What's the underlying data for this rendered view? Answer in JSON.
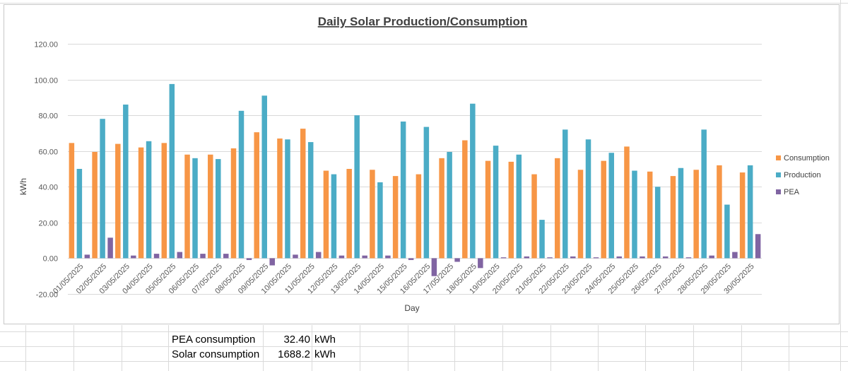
{
  "chart_data": {
    "type": "bar",
    "title": "Daily Solar Production/Consumption",
    "xlabel": "Day",
    "ylabel": "kWh",
    "ylim": [
      -20,
      120
    ],
    "yticks": [
      "-20.00",
      "0.00",
      "20.00",
      "40.00",
      "60.00",
      "80.00",
      "100.00",
      "120.00"
    ],
    "grid": true,
    "legend_position": "right",
    "categories": [
      "01/05/2025",
      "02/05/2025",
      "03/05/2025",
      "04/05/2025",
      "05/05/2025",
      "06/05/2025",
      "07/05/2025",
      "08/05/2025",
      "09/05/2025",
      "10/05/2025",
      "11/05/2025",
      "12/05/2025",
      "13/05/2025",
      "14/05/2025",
      "15/05/2025",
      "16/05/2025",
      "17/05/2025",
      "18/05/2025",
      "19/05/2025",
      "20/05/2025",
      "21/05/2025",
      "22/05/2025",
      "23/05/2025",
      "24/05/2025",
      "25/05/2025",
      "26/05/2025",
      "27/05/2025",
      "28/05/2025",
      "29/05/2025",
      "30/05/2025"
    ],
    "series": [
      {
        "name": "Consumption",
        "color": "#F79646",
        "values": [
          64.5,
          59.5,
          64,
          62,
          64.5,
          58,
          58,
          61.5,
          70.5,
          67,
          72.5,
          49,
          50,
          49.5,
          46,
          47,
          56,
          66,
          54.5,
          54,
          47,
          56,
          49.5,
          54.5,
          62.5,
          48.5,
          46,
          49.5,
          52,
          48
        ]
      },
      {
        "name": "Production",
        "color": "#4BACC6",
        "values": [
          50,
          78,
          86,
          65.5,
          97.5,
          56,
          55.5,
          82.5,
          91,
          66.5,
          65,
          47,
          80,
          42.5,
          76.5,
          73.5,
          59.5,
          86.5,
          63,
          58,
          21.5,
          72,
          66.5,
          59,
          49,
          40,
          50.5,
          72,
          30,
          52
        ]
      },
      {
        "name": "PEA",
        "color": "#8064A2",
        "values": [
          2,
          11.5,
          1.5,
          2.5,
          3.5,
          2.5,
          2.5,
          -1,
          -4,
          2,
          3.5,
          1.5,
          1.5,
          1.5,
          -1,
          -10,
          -2,
          -5.5,
          0.5,
          1,
          0.5,
          1,
          0.5,
          1,
          1,
          1,
          0.5,
          1.5,
          3.5,
          13.5
        ]
      }
    ]
  },
  "summary": {
    "pea_label": "PEA consumption",
    "pea_value": "32.40",
    "pea_unit": "kWh",
    "solar_label": "Solar consumption",
    "solar_value": "1688.2",
    "solar_unit": "kWh"
  }
}
